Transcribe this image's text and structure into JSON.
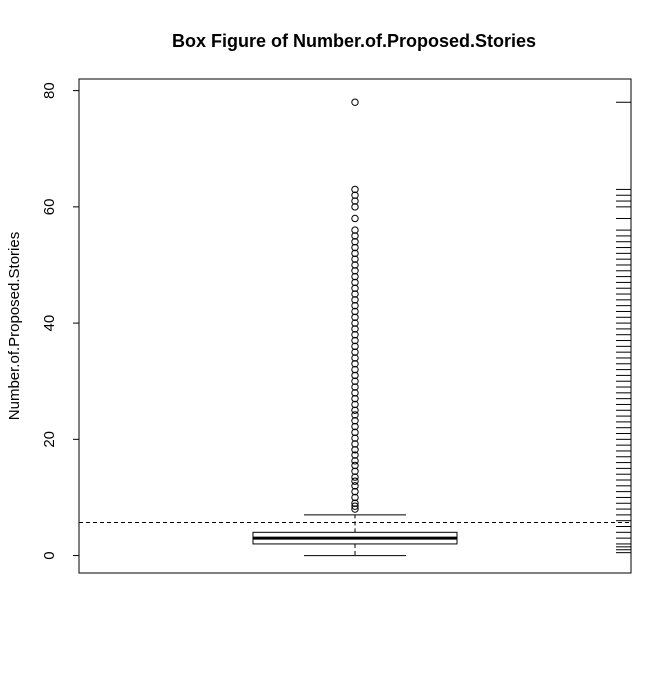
{
  "chart_data": {
    "type": "boxplot",
    "title": "Box Figure of Number.of.Proposed.Stories",
    "xlabel": "",
    "ylabel": "Number.of.Proposed.Stories",
    "ylim": [
      -3,
      82
    ],
    "yticks": [
      0,
      20,
      40,
      60,
      80
    ],
    "ytick_labels": [
      "0",
      "20",
      "40",
      "60",
      "80"
    ],
    "box": {
      "lower_whisker": 0,
      "q1": 2,
      "median": 3,
      "q3": 4,
      "upper_whisker": 7
    },
    "mean_line": 5.7,
    "outliers": [
      8,
      8.5,
      9,
      10,
      11,
      12,
      12.8,
      13.5,
      14.5,
      15.5,
      16.3,
      17.3,
      18.2,
      19.2,
      20.2,
      21.2,
      22.2,
      23.2,
      24.2,
      25,
      26,
      27,
      28,
      29,
      30,
      31,
      32,
      33,
      34,
      35,
      36,
      37,
      38,
      39,
      40,
      41,
      42,
      43,
      44,
      45,
      46,
      47,
      48,
      49,
      50,
      51,
      52,
      53,
      54,
      55,
      56,
      58,
      60,
      61,
      62,
      63,
      78
    ],
    "rug": [
      0.5,
      1,
      1.5,
      2,
      3,
      4,
      5,
      6,
      7,
      8,
      9,
      10,
      11,
      12,
      13,
      14,
      15,
      16,
      17,
      18,
      19,
      20,
      21,
      22,
      23,
      24,
      25,
      26,
      27,
      28,
      29,
      30,
      31,
      32,
      33,
      34,
      35,
      36,
      37,
      38,
      39,
      40,
      41,
      42,
      43,
      44,
      45,
      46,
      47,
      48,
      49,
      50,
      51,
      52,
      53,
      54,
      55,
      56,
      58,
      60,
      61,
      62,
      63,
      78
    ],
    "colors": {
      "line": "#000000",
      "box_fill": "#ffffff",
      "background": "#ffffff"
    },
    "grid": false,
    "legend": "none"
  }
}
